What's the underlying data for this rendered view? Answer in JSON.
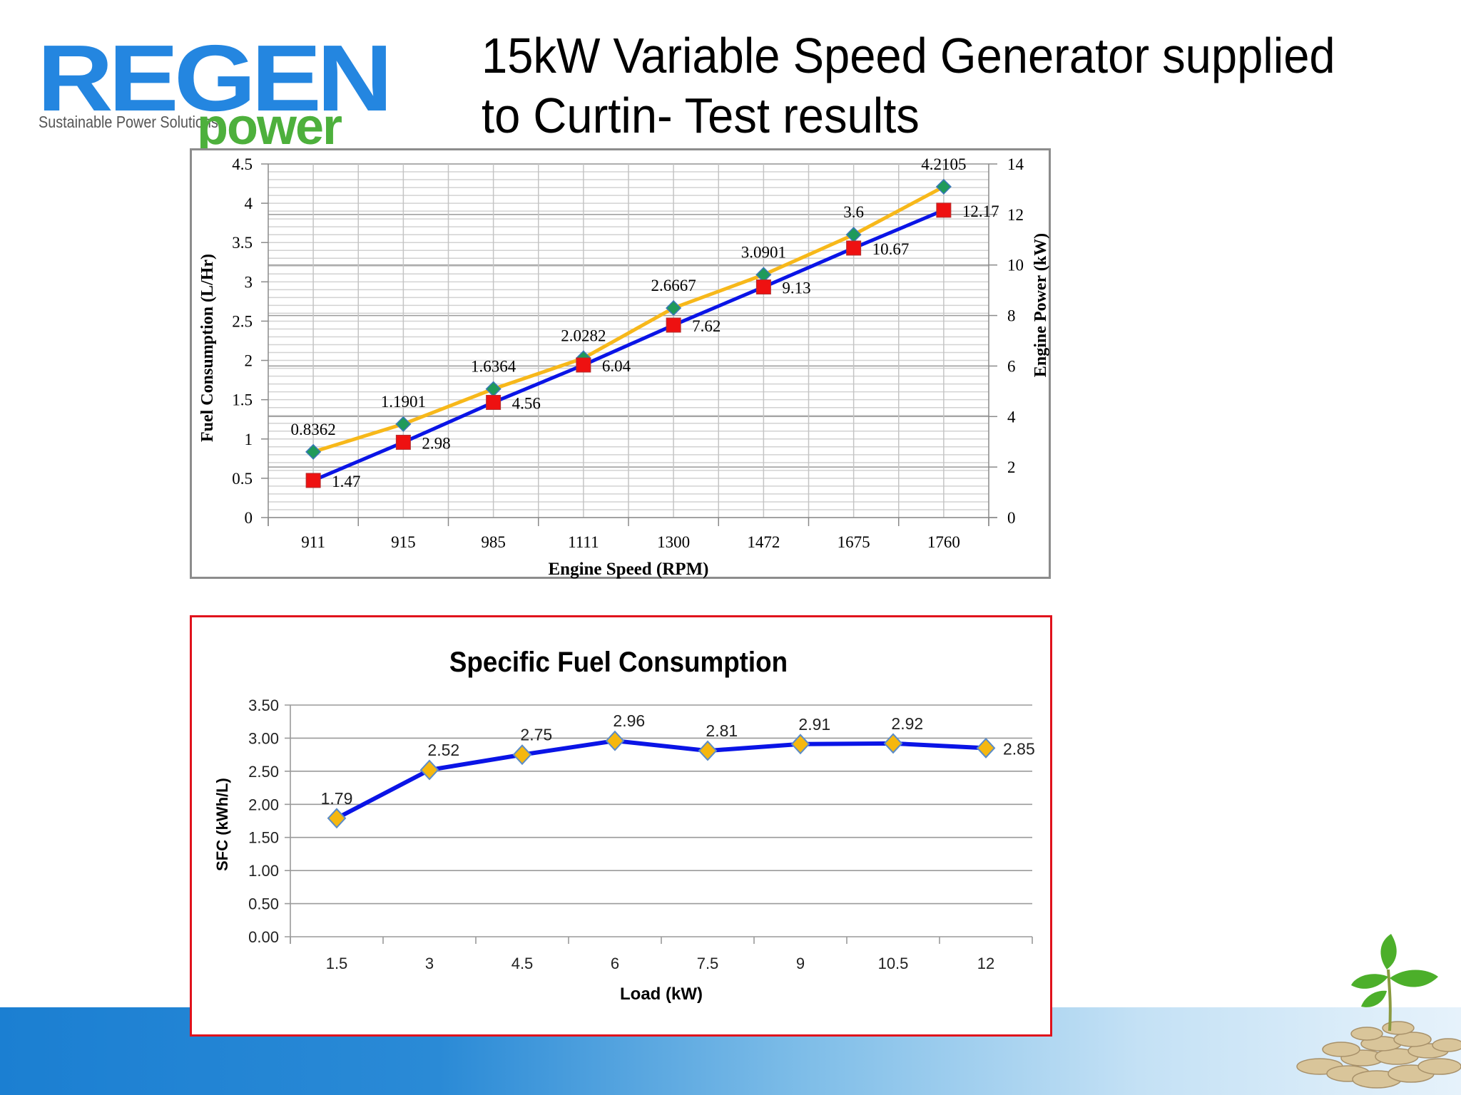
{
  "slide": {
    "title_line1": "15kW Variable Speed Generator supplied",
    "title_line2": "to Curtin- Test results"
  },
  "logo": {
    "wordmark": "REGEN",
    "tagline": "Sustainable Power Solutions",
    "sub": "power",
    "colors": {
      "regen": "#2486e0",
      "power": "#4db03c"
    }
  },
  "decor": {
    "image": "plant-on-coins"
  },
  "chart_data": [
    {
      "type": "line",
      "title": "",
      "xlabel": "Engine Speed (RPM)",
      "ylabel": "Fuel Consumption (L/Hr)",
      "y2label": "Engine Power (kW)",
      "categories": [
        "911",
        "915",
        "985",
        "1111",
        "1300",
        "1472",
        "1675",
        "1760"
      ],
      "ylim": [
        0,
        4.5
      ],
      "y2lim": [
        0,
        14
      ],
      "yticks": [
        "0",
        "0.5",
        "1",
        "1.5",
        "2",
        "2.5",
        "3",
        "3.5",
        "4",
        "4.5"
      ],
      "y2ticks": [
        "0",
        "2",
        "4",
        "6",
        "8",
        "10",
        "12",
        "14"
      ],
      "grid": true,
      "legend": "none",
      "series": [
        {
          "name": "Fuel Consumption (L/Hr)",
          "axis": "left",
          "line_color": "#f7b81a",
          "marker": "diamond",
          "marker_color": "#1f9a5a",
          "values": [
            0.8362,
            1.1901,
            1.6364,
            2.0282,
            2.6667,
            3.0901,
            3.6,
            4.2105
          ],
          "labels": [
            "0.8362",
            "1.1901",
            "1.6364",
            "2.0282",
            "2.6667",
            "3.0901",
            "3.6",
            "4.2105"
          ]
        },
        {
          "name": "Engine Power (kW)",
          "axis": "right",
          "line_color": "#0a14e6",
          "marker": "square",
          "marker_color": "#ee1111",
          "values": [
            1.47,
            2.98,
            4.56,
            6.04,
            7.62,
            9.13,
            10.67,
            12.17
          ],
          "labels": [
            "1.47",
            "2.98",
            "4.56",
            "6.04",
            "7.62",
            "9.13",
            "10.67",
            "12.17"
          ]
        }
      ]
    },
    {
      "type": "line",
      "title": "Specific Fuel Consumption",
      "xlabel": "Load (kW)",
      "ylabel": "SFC (kWh/L)",
      "categories": [
        "1.5",
        "3",
        "4.5",
        "6",
        "7.5",
        "9",
        "10.5",
        "12"
      ],
      "ylim": [
        0,
        3.5
      ],
      "yticks": [
        "0.00",
        "0.50",
        "1.00",
        "1.50",
        "2.00",
        "2.50",
        "3.00",
        "3.50"
      ],
      "grid": true,
      "legend": "none",
      "series": [
        {
          "name": "SFC",
          "line_color": "#0a14e6",
          "marker": "diamond",
          "marker_color": "#f5b70f",
          "marker_edge": "#5b8cc8",
          "values": [
            1.79,
            2.52,
            2.75,
            2.96,
            2.81,
            2.91,
            2.92,
            2.85
          ],
          "labels": [
            "1.79",
            "2.52",
            "2.75",
            "2.96",
            "2.81",
            "2.91",
            "2.92",
            "2.85"
          ]
        }
      ]
    }
  ]
}
